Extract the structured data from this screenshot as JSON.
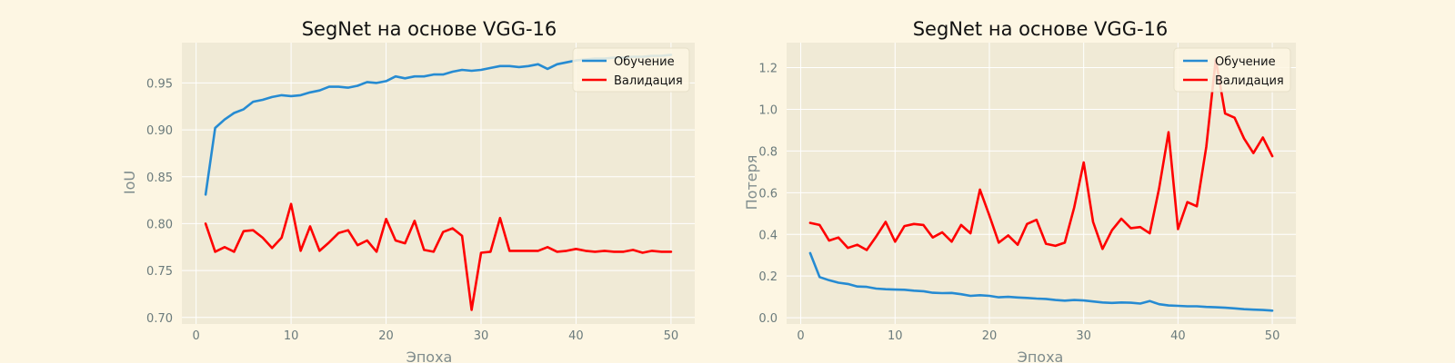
{
  "colors": {
    "figure_bg": "#fdf6e3",
    "plot_bg": "#f0ead6",
    "grid": "#ffffff",
    "train": "#268bd2",
    "val": "#ff0000"
  },
  "chart_data": [
    {
      "type": "line",
      "title": "SegNet на основе VGG-16",
      "xlabel": "Эпоха",
      "ylabel": "IoU",
      "xlim": [
        -1.5,
        52.5
      ],
      "ylim": [
        0.693,
        0.993
      ],
      "xticks": [
        0,
        10,
        20,
        30,
        40,
        50
      ],
      "yticks": [
        0.7,
        0.75,
        0.8,
        0.85,
        0.9,
        0.95
      ],
      "ytick_decimals": 2,
      "grid": true,
      "legend_position": "top-right",
      "x": [
        1,
        2,
        3,
        4,
        5,
        6,
        7,
        8,
        9,
        10,
        11,
        12,
        13,
        14,
        15,
        16,
        17,
        18,
        19,
        20,
        21,
        22,
        23,
        24,
        25,
        26,
        27,
        28,
        29,
        30,
        31,
        32,
        33,
        34,
        35,
        36,
        37,
        38,
        39,
        40,
        41,
        42,
        43,
        44,
        45,
        46,
        47,
        48,
        49,
        50
      ],
      "series": [
        {
          "name": "Обучение",
          "color": "#268bd2",
          "values": [
            0.831,
            0.902,
            0.911,
            0.918,
            0.922,
            0.93,
            0.932,
            0.935,
            0.937,
            0.936,
            0.937,
            0.94,
            0.942,
            0.946,
            0.946,
            0.945,
            0.947,
            0.951,
            0.95,
            0.952,
            0.957,
            0.955,
            0.957,
            0.957,
            0.959,
            0.959,
            0.962,
            0.964,
            0.963,
            0.964,
            0.966,
            0.968,
            0.968,
            0.967,
            0.968,
            0.97,
            0.965,
            0.97,
            0.972,
            0.974,
            0.975,
            0.976,
            0.976,
            0.977,
            0.977,
            0.978,
            0.978,
            0.979,
            0.979,
            0.98
          ]
        },
        {
          "name": "Валидация",
          "color": "#ff0000",
          "values": [
            0.8,
            0.77,
            0.775,
            0.77,
            0.792,
            0.793,
            0.785,
            0.774,
            0.785,
            0.821,
            0.771,
            0.797,
            0.771,
            0.78,
            0.79,
            0.793,
            0.777,
            0.782,
            0.77,
            0.805,
            0.782,
            0.779,
            0.803,
            0.772,
            0.77,
            0.791,
            0.795,
            0.787,
            0.708,
            0.769,
            0.77,
            0.806,
            0.771,
            0.771,
            0.771,
            0.771,
            0.775,
            0.77,
            0.771,
            0.773,
            0.771,
            0.77,
            0.771,
            0.77,
            0.77,
            0.772,
            0.769,
            0.771,
            0.77,
            0.77
          ]
        }
      ]
    },
    {
      "type": "line",
      "title": "SegNet на основе VGG-16",
      "xlabel": "Эпоха",
      "ylabel": "Потеря",
      "xlim": [
        -1.5,
        52.5
      ],
      "ylim": [
        -0.03,
        1.32
      ],
      "xticks": [
        0,
        10,
        20,
        30,
        40,
        50
      ],
      "yticks": [
        0.0,
        0.2,
        0.4,
        0.6,
        0.8,
        1.0,
        1.2
      ],
      "ytick_decimals": 1,
      "grid": true,
      "legend_position": "top-right",
      "x": [
        1,
        2,
        3,
        4,
        5,
        6,
        7,
        8,
        9,
        10,
        11,
        12,
        13,
        14,
        15,
        16,
        17,
        18,
        19,
        20,
        21,
        22,
        23,
        24,
        25,
        26,
        27,
        28,
        29,
        30,
        31,
        32,
        33,
        34,
        35,
        36,
        37,
        38,
        39,
        40,
        41,
        42,
        43,
        44,
        45,
        46,
        47,
        48,
        49,
        50
      ],
      "series": [
        {
          "name": "Обучение",
          "color": "#268bd2",
          "values": [
            0.31,
            0.195,
            0.18,
            0.168,
            0.162,
            0.15,
            0.148,
            0.14,
            0.137,
            0.135,
            0.134,
            0.13,
            0.127,
            0.12,
            0.118,
            0.119,
            0.113,
            0.105,
            0.108,
            0.105,
            0.098,
            0.1,
            0.097,
            0.095,
            0.092,
            0.09,
            0.085,
            0.082,
            0.085,
            0.083,
            0.078,
            0.073,
            0.071,
            0.073,
            0.072,
            0.068,
            0.08,
            0.065,
            0.059,
            0.057,
            0.055,
            0.055,
            0.052,
            0.05,
            0.048,
            0.045,
            0.041,
            0.039,
            0.037,
            0.034
          ]
        },
        {
          "name": "Валидация",
          "color": "#ff0000",
          "values": [
            0.455,
            0.445,
            0.37,
            0.385,
            0.335,
            0.35,
            0.325,
            0.39,
            0.46,
            0.365,
            0.44,
            0.45,
            0.445,
            0.385,
            0.41,
            0.365,
            0.445,
            0.405,
            0.615,
            0.49,
            0.36,
            0.395,
            0.35,
            0.45,
            0.47,
            0.355,
            0.345,
            0.36,
            0.53,
            0.745,
            0.46,
            0.33,
            0.42,
            0.475,
            0.43,
            0.435,
            0.405,
            0.62,
            0.89,
            0.425,
            0.555,
            0.535,
            0.82,
            1.24,
            0.98,
            0.96,
            0.86,
            0.79,
            0.865,
            0.775
          ]
        }
      ]
    }
  ]
}
